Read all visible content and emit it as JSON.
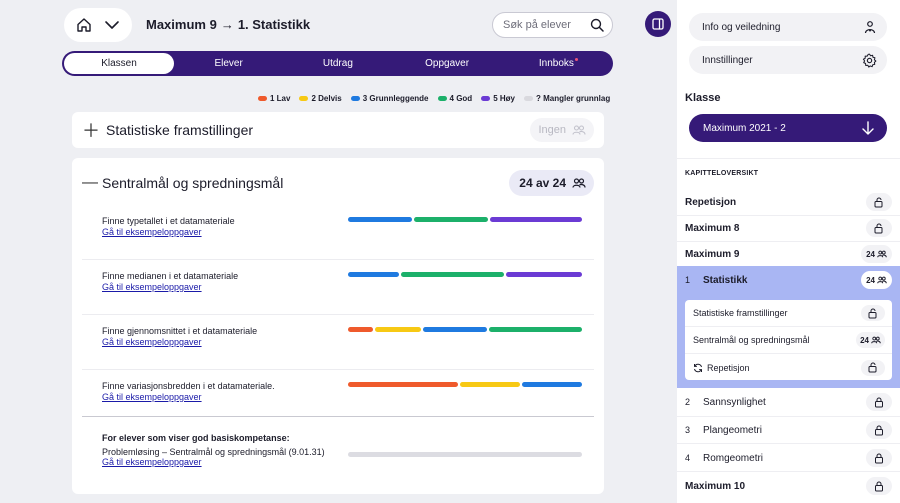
{
  "header": {
    "home_icon": "home-icon",
    "menu_icon": "chevron-down-icon",
    "crumb_book": "Maximum 9",
    "crumb_arrow": "→",
    "crumb_chapter": "1. Statistikk",
    "search_placeholder": "Søk på elever",
    "panel_toggle_icon": "sidebar-panel-icon"
  },
  "tabs": [
    {
      "label": "Klassen",
      "active": true
    },
    {
      "label": "Elever"
    },
    {
      "label": "Utdrag"
    },
    {
      "label": "Oppgaver"
    },
    {
      "label": "Innboks",
      "notification": true
    }
  ],
  "legend": [
    {
      "label": "1 Lav",
      "color": "#ef5a2c"
    },
    {
      "label": "2 Delvis",
      "color": "#f7c914"
    },
    {
      "label": "3 Grunnleggende",
      "color": "#1f7ae0"
    },
    {
      "label": "4 God",
      "color": "#1cb06a"
    },
    {
      "label": "5 Høy",
      "color": "#6b3bd4"
    },
    {
      "label": "? Mangler grunnlag",
      "color": "#d9d9de"
    }
  ],
  "section1": {
    "title": "Statistiske framstillinger",
    "badge": "Ingen"
  },
  "section2": {
    "title": "Sentralmål og spredningsmål",
    "badge": "24 av 24",
    "goals": [
      {
        "name": "Finne typetallet i et datamateriale",
        "link": "Gå til eksempeloppgaver",
        "segments": [
          {
            "level": 3,
            "share": 0.28
          },
          {
            "level": 4,
            "share": 0.32
          },
          {
            "level": 5,
            "share": 0.4
          }
        ]
      },
      {
        "name": "Finne medianen i et datamateriale",
        "link": "Gå til eksempeloppgaver",
        "segments": [
          {
            "level": 3,
            "share": 0.22
          },
          {
            "level": 4,
            "share": 0.45
          },
          {
            "level": 5,
            "share": 0.33
          }
        ]
      },
      {
        "name": "Finne gjennomsnittet i et datamateriale",
        "link": "Gå til eksempeloppgaver",
        "segments": [
          {
            "level": 1,
            "share": 0.11
          },
          {
            "level": 2,
            "share": 0.2
          },
          {
            "level": 3,
            "share": 0.28
          },
          {
            "level": 4,
            "share": 0.41
          }
        ]
      },
      {
        "name": "Finne variasjonsbredden i et datamateriale.",
        "link": "Gå til eksempeloppgaver",
        "segments": [
          {
            "level": 1,
            "share": 0.48
          },
          {
            "level": 2,
            "share": 0.26
          },
          {
            "level": 3,
            "share": 0.26
          }
        ]
      }
    ],
    "extra": {
      "heading": "For elever som viser god basiskompetanse:",
      "name": "Problemløsing – Sentralmål og spredningsmål (9.01.31)",
      "link": "Gå til eksempeloppgaver"
    }
  },
  "sidebar": {
    "info_label": "Info og veiledning",
    "info_icon": "person-info-icon",
    "settings_label": "Innstillinger",
    "settings_icon": "gear-icon",
    "klasse_label": "Klasse",
    "klasse_value": "Maximum 2021 - 2",
    "overview_label": "KAPITTELOVERSIKT",
    "items": [
      {
        "label": "Repetisjon",
        "bold": true,
        "icon": "unlock-icon"
      },
      {
        "label": "Maximum 8",
        "bold": true,
        "icon": "unlock-icon"
      },
      {
        "label": "Maximum 9",
        "bold": true,
        "count": "24"
      }
    ],
    "active": {
      "num": "1",
      "label": "Statistikk",
      "count": "24",
      "subs": [
        {
          "label": "Statistiske framstillinger",
          "icon": "unlock-icon"
        },
        {
          "label": "Sentralmål og spredningsmål",
          "count": "24"
        },
        {
          "label": "Repetisjon",
          "icon": "unlock-icon",
          "prefix_icon": "refresh-icon"
        }
      ]
    },
    "chapters": [
      {
        "num": "2",
        "label": "Sannsynlighet",
        "icon": "lock-icon"
      },
      {
        "num": "3",
        "label": "Plangeometri",
        "icon": "lock-icon"
      },
      {
        "num": "4",
        "label": "Romgeometri",
        "icon": "lock-icon"
      }
    ],
    "last": {
      "label": "Maximum 10",
      "icon": "lock-icon"
    }
  }
}
